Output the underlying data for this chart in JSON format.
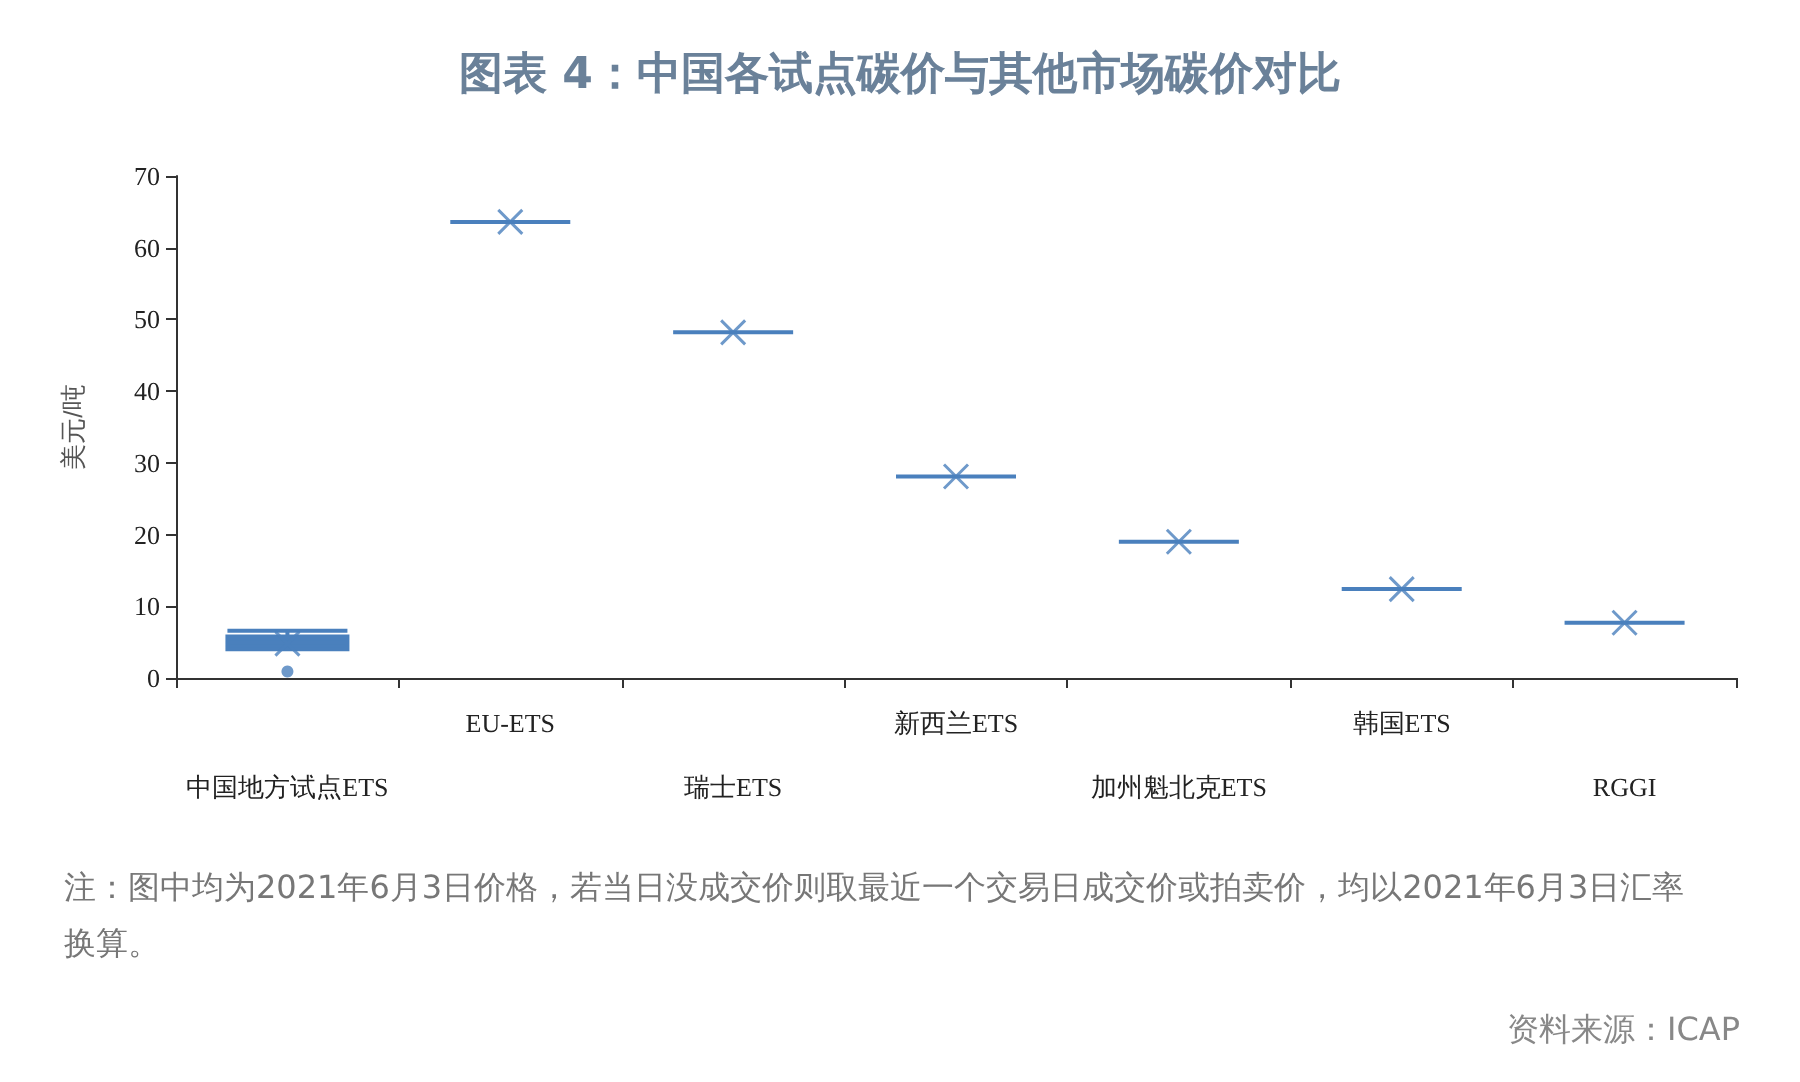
{
  "chart_data": {
    "type": "box",
    "title": "图表 4：中国各试点碳价与其他市场碳价对比",
    "ylabel": "美元/吨",
    "categories": [
      "中国地方试点ETS",
      "EU-ETS",
      "瑞士ETS",
      "新西兰ETS",
      "加州魁北克ETS",
      "韩国ETS",
      "RGGI"
    ],
    "color": "#4a80bd",
    "boxes": [
      {
        "low": 4,
        "q1": 4,
        "median": 5,
        "q3": 5.8,
        "high": 6.6,
        "mean": 4.8,
        "outliers": [
          0.9
        ]
      },
      {
        "low": 63.6,
        "q1": 63.6,
        "median": 63.6,
        "q3": 63.6,
        "high": 63.6,
        "mean": 63.6
      },
      {
        "low": 48.2,
        "q1": 48.2,
        "median": 48.2,
        "q3": 48.2,
        "high": 48.2,
        "mean": 48.2
      },
      {
        "low": 28.1,
        "q1": 28.1,
        "median": 28.1,
        "q3": 28.1,
        "high": 28.1,
        "mean": 28.1
      },
      {
        "low": 19,
        "q1": 19,
        "median": 19,
        "q3": 19,
        "high": 19,
        "mean": 19
      },
      {
        "low": 12.4,
        "q1": 12.4,
        "median": 12.4,
        "q3": 12.4,
        "high": 12.4,
        "mean": 12.4
      },
      {
        "low": 7.7,
        "q1": 7.7,
        "median": 7.7,
        "q3": 7.7,
        "high": 7.7,
        "mean": 7.7
      }
    ],
    "ylim": [
      0,
      70
    ],
    "yticks": [
      0,
      10,
      20,
      30,
      40,
      50,
      60,
      70
    ],
    "grid": false,
    "legend": false,
    "annotations": [
      "注：图中均为2021年6月3日价格，若当日没成交价则取最近一个交易日成交价或拍卖价，均以2021年6月3日汇率换算。",
      "资料来源：ICAP"
    ]
  }
}
